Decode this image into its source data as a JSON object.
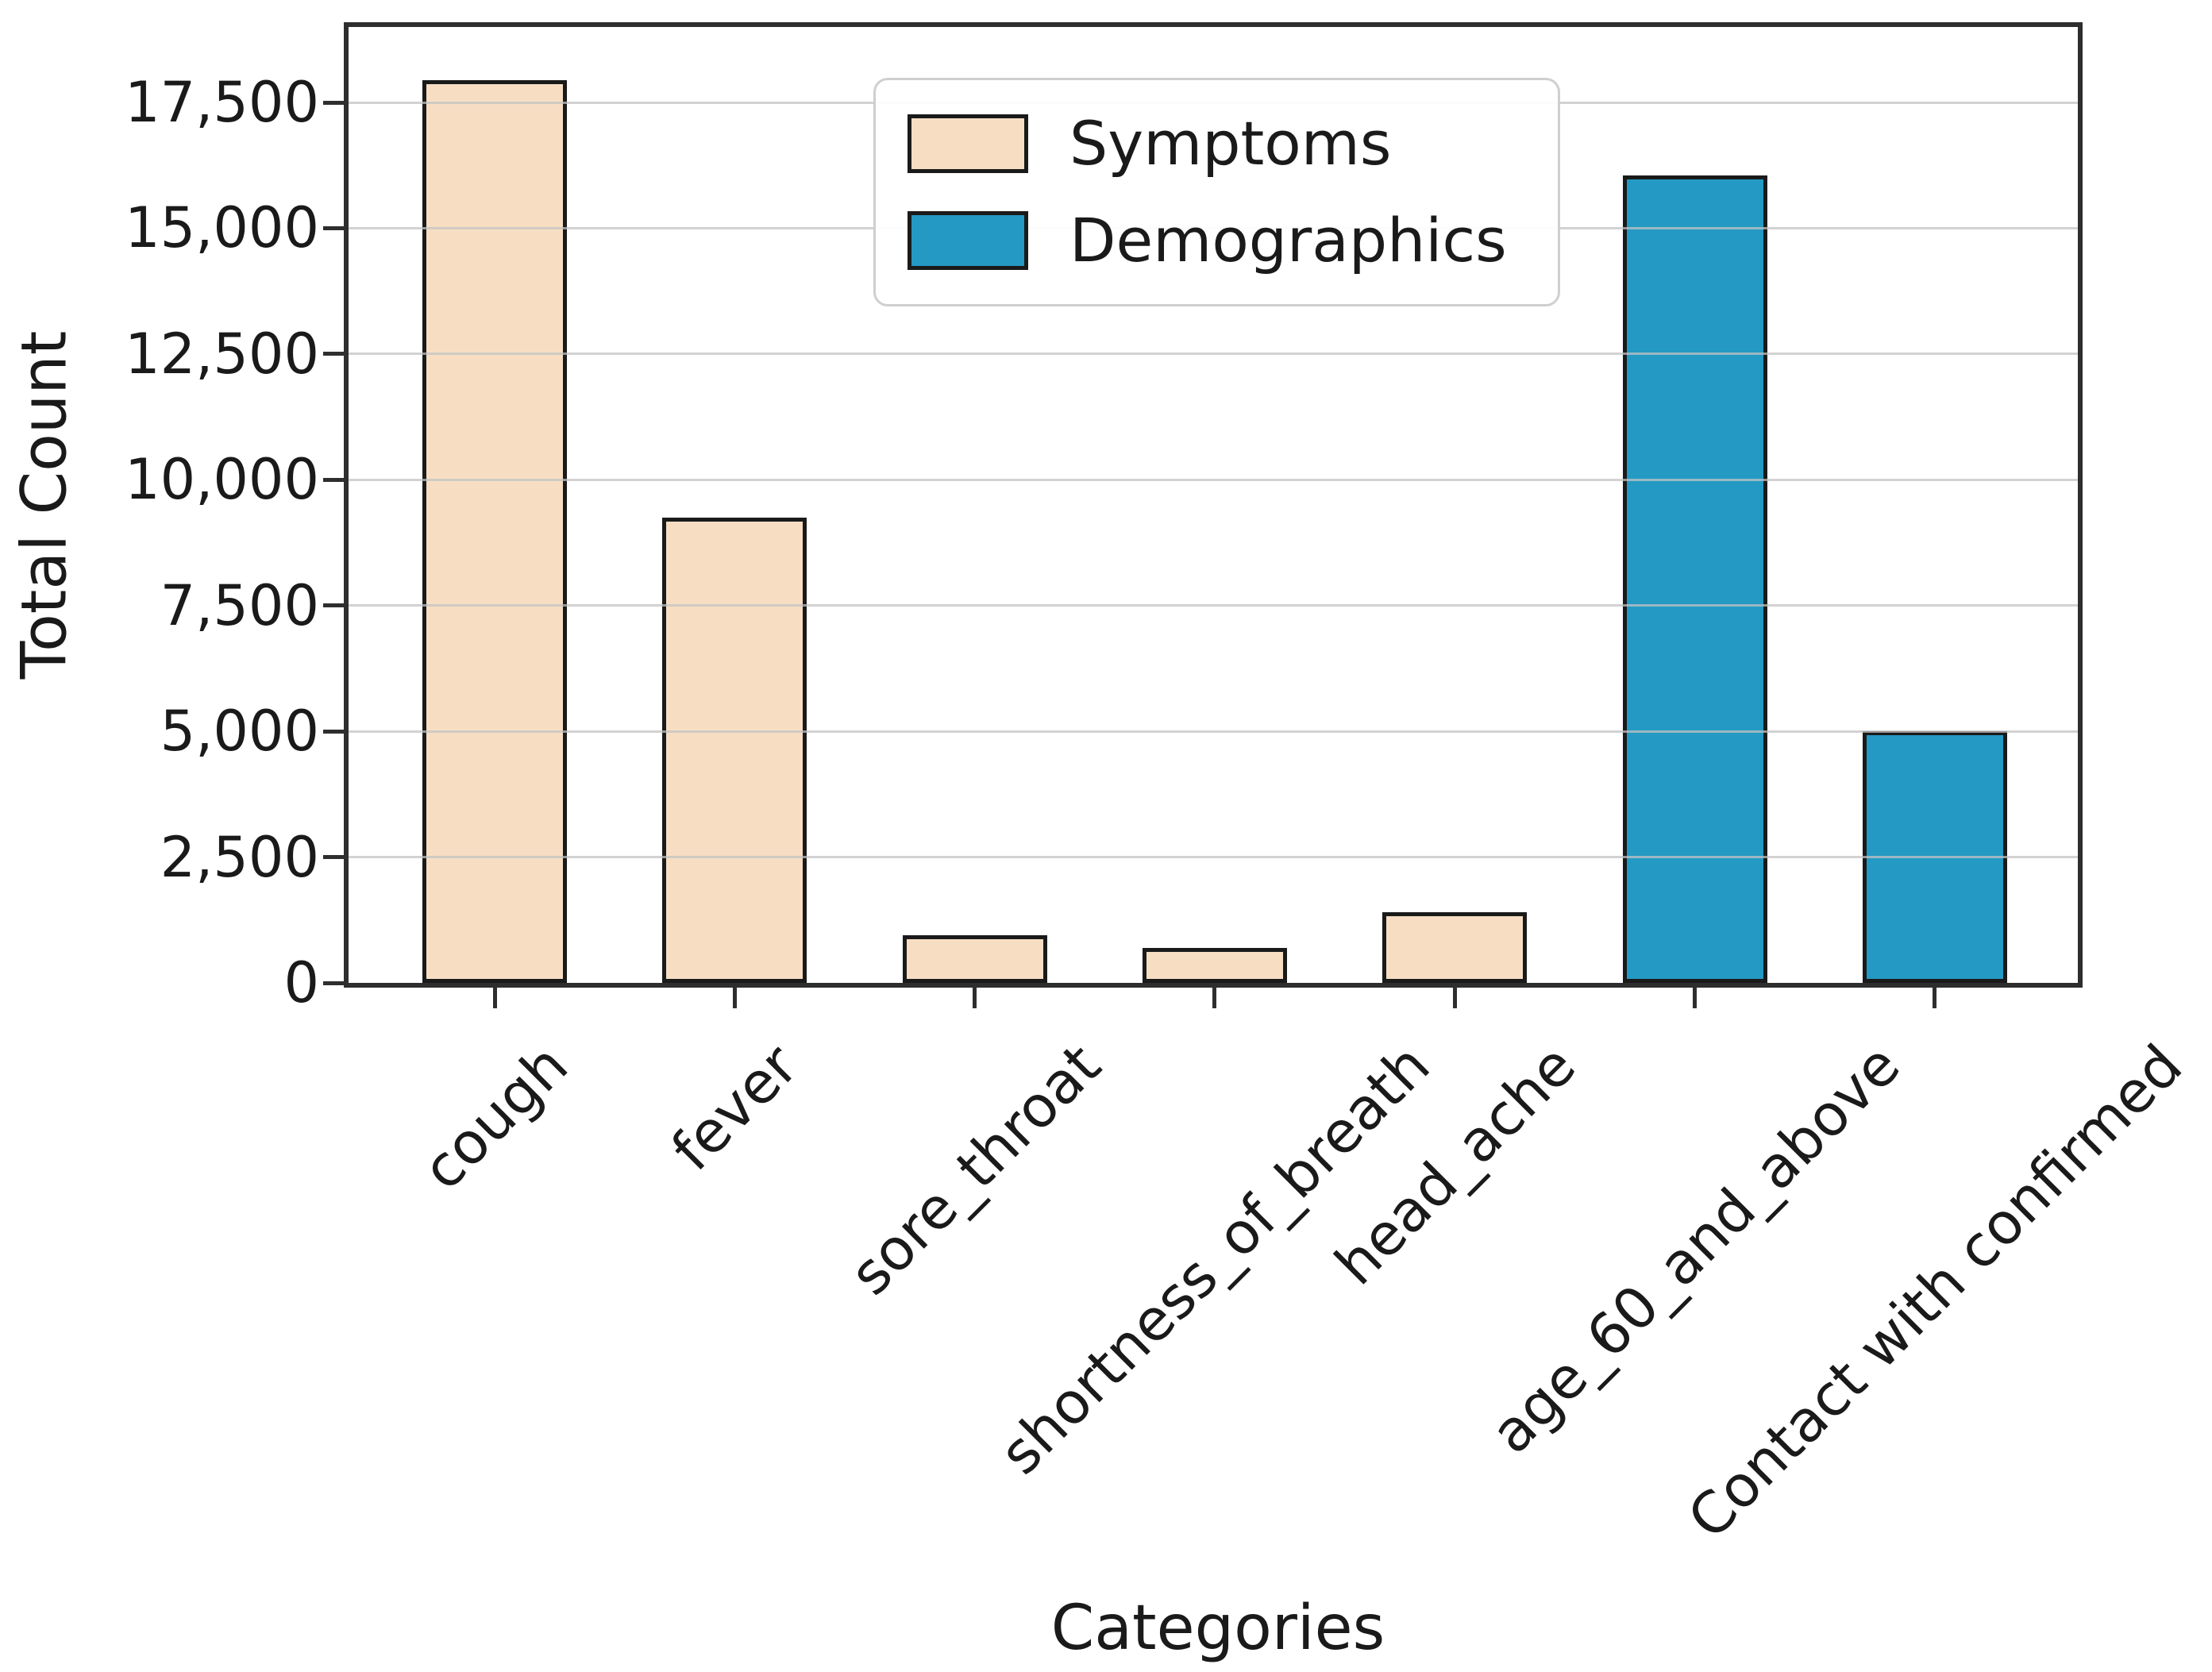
{
  "chart_data": {
    "type": "bar",
    "title": "",
    "xlabel": "Categories",
    "ylabel": "Total Count",
    "categories": [
      "cough",
      "fever",
      "sore_throat",
      "shortness_of_breath",
      "head_ache",
      "age_60_and_above",
      "Contact with confirmed"
    ],
    "values": [
      17950,
      9250,
      950,
      700,
      1400,
      16050,
      5000
    ],
    "bar_series": [
      "Symptoms",
      "Symptoms",
      "Symptoms",
      "Symptoms",
      "Symptoms",
      "Demographics",
      "Demographics"
    ],
    "series": [
      {
        "name": "Symptoms",
        "color": "#f7dec3"
      },
      {
        "name": "Demographics",
        "color": "#2499c4"
      }
    ],
    "ylim": [
      0,
      19000
    ],
    "yticks": [
      0,
      2500,
      5000,
      7500,
      10000,
      12500,
      15000,
      17500
    ],
    "ytick_labels": [
      "0",
      "2,500",
      "5,000",
      "7,500",
      "10,000",
      "12,500",
      "15,000",
      "17,500"
    ],
    "grid": true,
    "grid_axis": "y",
    "legend_position": "upper center",
    "bar_edge_color": "#1a1a1a",
    "grid_color": "#c3c3c3",
    "spine_color": "#2e2e2e",
    "text_color": "#1a1a1a",
    "background_color": "#ffffff"
  }
}
